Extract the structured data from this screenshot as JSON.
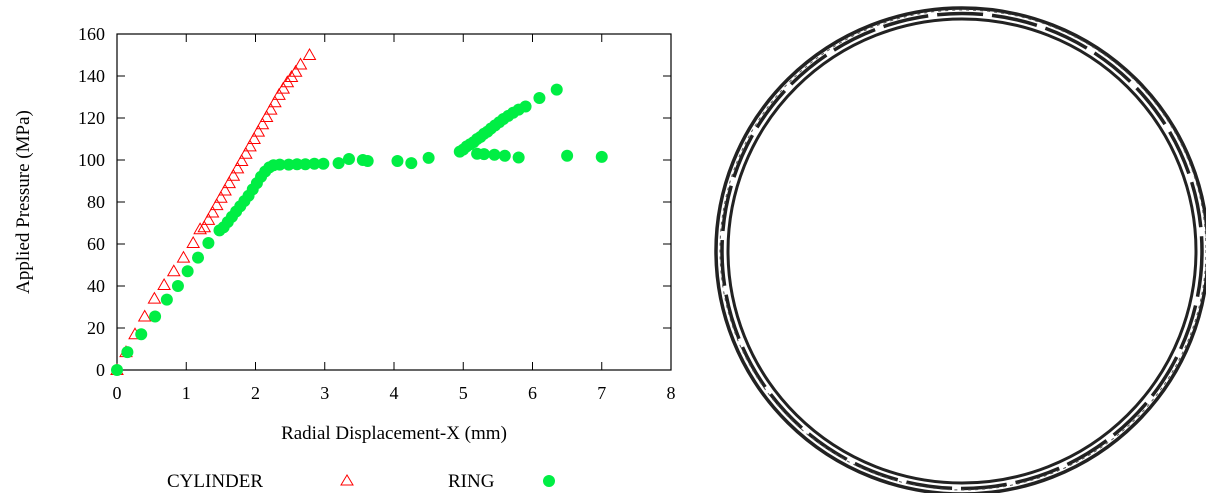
{
  "chart_data": {
    "type": "scatter",
    "xlabel": "Radial Displacement-X (mm)",
    "ylabel": "Applied Pressure (MPa)",
    "xlim": [
      0,
      8
    ],
    "ylim": [
      0,
      160
    ],
    "xticks": [
      "0",
      "1",
      "2",
      "3",
      "4",
      "5",
      "6",
      "7",
      "8"
    ],
    "yticks": [
      "0",
      "20",
      "40",
      "60",
      "80",
      "100",
      "120",
      "140",
      "160"
    ],
    "grid": false,
    "legend_position": "bottom",
    "series": [
      {
        "name": "CYLINDER",
        "marker": "open-triangle",
        "color": "#ff0000",
        "points": [
          [
            0.0,
            0
          ],
          [
            0.13,
            8.5
          ],
          [
            0.26,
            17
          ],
          [
            0.4,
            25.5
          ],
          [
            0.54,
            34
          ],
          [
            0.68,
            40.5
          ],
          [
            0.82,
            47
          ],
          [
            0.96,
            53.5
          ],
          [
            1.1,
            60.5
          ],
          [
            1.2,
            67
          ],
          [
            1.26,
            68
          ],
          [
            1.32,
            71.5
          ],
          [
            1.38,
            75
          ],
          [
            1.44,
            78.5
          ],
          [
            1.5,
            82
          ],
          [
            1.56,
            85.5
          ],
          [
            1.62,
            89
          ],
          [
            1.68,
            92.5
          ],
          [
            1.74,
            96
          ],
          [
            1.8,
            99.5
          ],
          [
            1.86,
            103
          ],
          [
            1.92,
            106.5
          ],
          [
            1.98,
            110
          ],
          [
            2.04,
            113.5
          ],
          [
            2.1,
            117
          ],
          [
            2.16,
            120.5
          ],
          [
            2.22,
            124
          ],
          [
            2.28,
            127.5
          ],
          [
            2.34,
            131
          ],
          [
            2.4,
            134
          ],
          [
            2.46,
            137
          ],
          [
            2.52,
            139.5
          ],
          [
            2.58,
            142
          ],
          [
            2.65,
            145.5
          ],
          [
            2.78,
            150
          ]
        ]
      },
      {
        "name": "RING",
        "marker": "filled-circle",
        "color": "#00ee44",
        "points": [
          [
            0.0,
            0
          ],
          [
            0.15,
            8.5
          ],
          [
            0.35,
            17
          ],
          [
            0.55,
            25.5
          ],
          [
            0.72,
            33.5
          ],
          [
            0.88,
            40
          ],
          [
            1.02,
            47
          ],
          [
            1.17,
            53.5
          ],
          [
            1.32,
            60.5
          ],
          [
            1.48,
            66.5
          ],
          [
            1.54,
            68
          ],
          [
            1.6,
            70.5
          ],
          [
            1.66,
            73
          ],
          [
            1.72,
            75.5
          ],
          [
            1.78,
            78
          ],
          [
            1.84,
            80.5
          ],
          [
            1.9,
            83
          ],
          [
            1.96,
            86
          ],
          [
            2.02,
            89
          ],
          [
            2.08,
            92
          ],
          [
            2.14,
            94.5
          ],
          [
            2.2,
            96.5
          ],
          [
            2.26,
            97.5
          ],
          [
            2.35,
            97.8
          ],
          [
            2.48,
            97.8
          ],
          [
            2.6,
            98
          ],
          [
            2.72,
            98
          ],
          [
            2.85,
            98.2
          ],
          [
            2.98,
            98.2
          ],
          [
            3.2,
            98.5
          ],
          [
            3.35,
            100.5
          ],
          [
            3.55,
            100
          ],
          [
            3.62,
            99.5
          ],
          [
            4.05,
            99.5
          ],
          [
            4.25,
            98.5
          ],
          [
            4.5,
            101
          ],
          [
            4.95,
            104
          ],
          [
            5.0,
            105
          ],
          [
            5.05,
            106.5
          ],
          [
            5.1,
            107.5
          ],
          [
            5.15,
            108.5
          ],
          [
            5.2,
            110
          ],
          [
            5.25,
            111
          ],
          [
            5.3,
            112.5
          ],
          [
            5.35,
            113.5
          ],
          [
            5.4,
            115
          ],
          [
            5.46,
            116.5
          ],
          [
            5.52,
            118
          ],
          [
            5.58,
            119.5
          ],
          [
            5.65,
            121
          ],
          [
            5.72,
            122.5
          ],
          [
            5.8,
            124
          ],
          [
            5.9,
            125.5
          ],
          [
            6.1,
            129.5
          ],
          [
            6.35,
            133.5
          ],
          [
            5.2,
            103
          ],
          [
            5.3,
            102.8
          ],
          [
            5.45,
            102.5
          ],
          [
            5.6,
            102
          ],
          [
            5.8,
            101.2
          ],
          [
            6.5,
            102
          ],
          [
            7.0,
            101.5
          ]
        ]
      }
    ]
  },
  "ring_figure": {
    "color": "#222222"
  }
}
